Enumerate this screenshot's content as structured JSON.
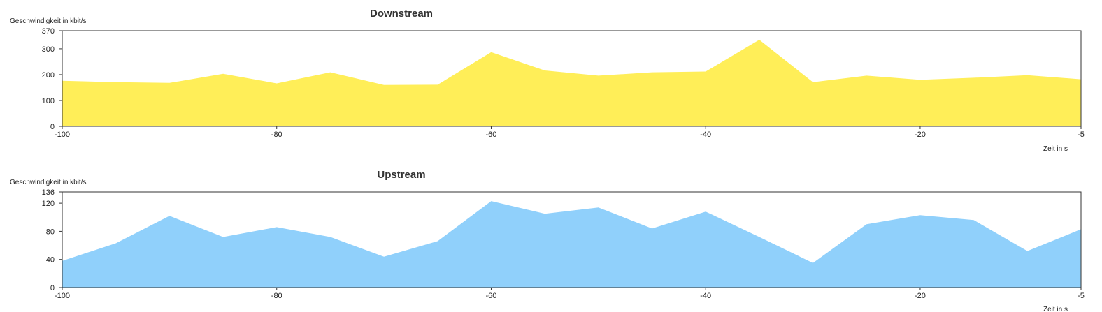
{
  "chart_data": [
    {
      "type": "area",
      "title": "Downstream",
      "ylabel": "Geschwindigkeit in kbit/s",
      "xlabel": "Zeit in s",
      "color": "#FFEE58",
      "xlim": [
        -100,
        -5
      ],
      "ylim": [
        0,
        370
      ],
      "xticks": [
        -100,
        -80,
        -60,
        -40,
        -20,
        -5
      ],
      "yticks": [
        0,
        100,
        200,
        300,
        370
      ],
      "grid": false,
      "x": [
        -100,
        -95,
        -90,
        -85,
        -80,
        -75,
        -70,
        -65,
        -60,
        -55,
        -50,
        -45,
        -40,
        -35,
        -30,
        -25,
        -20,
        -15,
        -10,
        -5
      ],
      "values": [
        176,
        171,
        168,
        203,
        166,
        209,
        160,
        161,
        287,
        216,
        196,
        209,
        212,
        335,
        171,
        196,
        180,
        188,
        198,
        182
      ]
    },
    {
      "type": "area",
      "title": "Upstream",
      "ylabel": "Geschwindigkeit in kbit/s",
      "xlabel": "Zeit in s",
      "color": "#90D0FB",
      "xlim": [
        -100,
        -5
      ],
      "ylim": [
        0,
        136
      ],
      "xticks": [
        -100,
        -80,
        -60,
        -40,
        -20,
        -5
      ],
      "yticks": [
        0,
        40,
        80,
        120,
        136
      ],
      "grid": false,
      "x": [
        -100,
        -95,
        -90,
        -85,
        -80,
        -75,
        -70,
        -65,
        -60,
        -55,
        -50,
        -45,
        -40,
        -35,
        -30,
        -25,
        -20,
        -15,
        -10,
        -5
      ],
      "values": [
        38,
        63,
        102,
        72,
        86,
        72,
        44,
        66,
        123,
        105,
        114,
        84,
        108,
        72,
        35,
        90,
        103,
        96,
        52,
        83
      ]
    }
  ]
}
